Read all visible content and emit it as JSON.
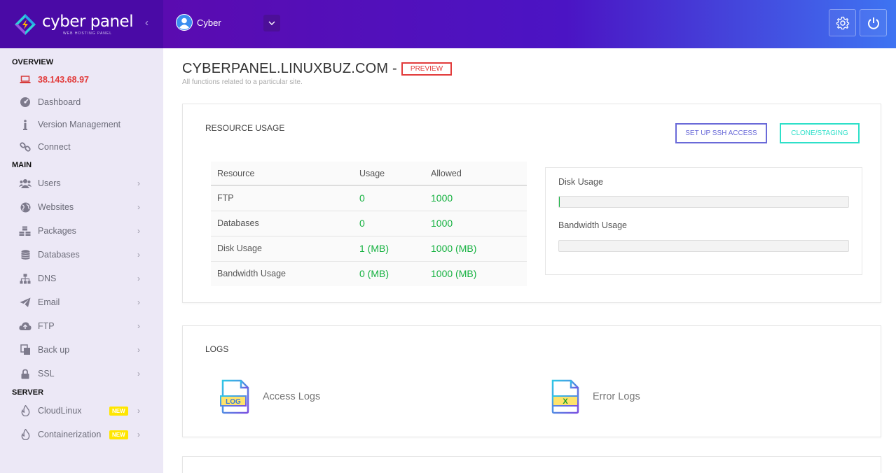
{
  "brand": {
    "name": "cyber panel",
    "tagline": "WEB HOSTING PANEL"
  },
  "sidebar": {
    "sections": {
      "overview": "OVERVIEW",
      "main": "MAIN",
      "server": "SERVER"
    },
    "overview_items": [
      {
        "label": "38.143.68.97",
        "icon": "laptop-icon"
      },
      {
        "label": "Dashboard",
        "icon": "dashboard-gauge-icon"
      },
      {
        "label": "Version Management",
        "icon": "info-icon"
      },
      {
        "label": "Connect",
        "icon": "link-icon"
      }
    ],
    "main_items": [
      {
        "label": "Users",
        "icon": "users-icon"
      },
      {
        "label": "Websites",
        "icon": "globe-icon"
      },
      {
        "label": "Packages",
        "icon": "cubes-icon"
      },
      {
        "label": "Databases",
        "icon": "database-icon"
      },
      {
        "label": "DNS",
        "icon": "sitemap-icon"
      },
      {
        "label": "Email",
        "icon": "paper-plane-icon"
      },
      {
        "label": "FTP",
        "icon": "cloud-upload-icon"
      },
      {
        "label": "Back up",
        "icon": "copy-icon"
      },
      {
        "label": "SSL",
        "icon": "lock-icon"
      }
    ],
    "server_items": [
      {
        "label": "CloudLinux",
        "icon": "fire-icon",
        "badge": "NEW"
      },
      {
        "label": "Containerization",
        "icon": "fire-icon",
        "badge": "NEW"
      }
    ]
  },
  "topbar": {
    "username": "Cyber",
    "colors": {
      "start": "#5a0bb0",
      "end": "#3e74f2"
    }
  },
  "page": {
    "title": "CYBERPANEL.LINUXBUZ.COM -",
    "preview_badge": "PREVIEW",
    "subtitle": "All functions related to a particular site."
  },
  "resource_usage": {
    "title": "RESOURCE USAGE",
    "ssh_button": "SET UP SSH ACCESS",
    "clone_button": "CLONE/STAGING",
    "columns": [
      "Resource",
      "Usage",
      "Allowed"
    ],
    "rows": [
      {
        "resource": "FTP",
        "usage": "0",
        "allowed": "1000"
      },
      {
        "resource": "Databases",
        "usage": "0",
        "allowed": "1000"
      },
      {
        "resource": "Disk Usage",
        "usage": "1 (MB)",
        "allowed": "1000 (MB)"
      },
      {
        "resource": "Bandwidth Usage",
        "usage": "0 (MB)",
        "allowed": "1000 (MB)"
      }
    ],
    "disk_label": "Disk Usage",
    "disk_fraction": 0.001,
    "bandwidth_label": "Bandwidth Usage",
    "bandwidth_fraction": 0
  },
  "logs": {
    "title": "LOGS",
    "access": {
      "label": "Access Logs",
      "icon_text": "LOG"
    },
    "error": {
      "label": "Error Logs",
      "icon_text": "X"
    }
  }
}
